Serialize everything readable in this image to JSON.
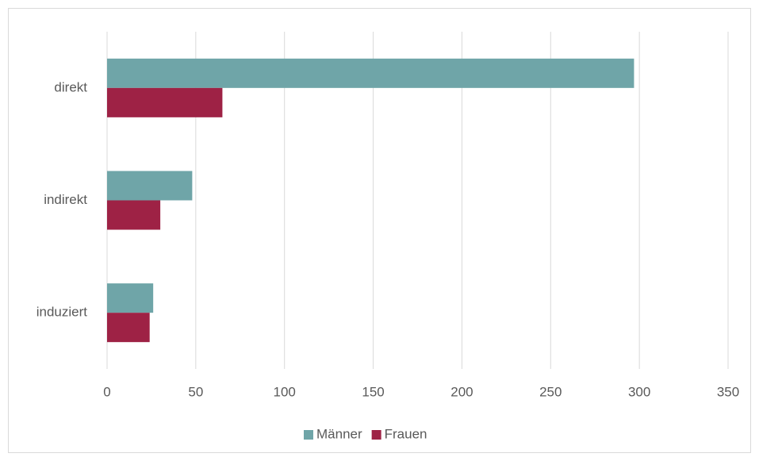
{
  "chart_data": {
    "type": "bar",
    "orientation": "horizontal",
    "categories": [
      "direkt",
      "indirekt",
      "induziert"
    ],
    "series": [
      {
        "name": "Männer",
        "color": "#6fa5a8",
        "values": [
          297,
          48,
          26
        ]
      },
      {
        "name": "Frauen",
        "color": "#9e2245",
        "values": [
          65,
          30,
          24
        ]
      }
    ],
    "xlim": [
      0,
      350
    ],
    "xticks": [
      0,
      50,
      100,
      150,
      200,
      250,
      300,
      350
    ],
    "grid": true,
    "legend": "bottom"
  }
}
